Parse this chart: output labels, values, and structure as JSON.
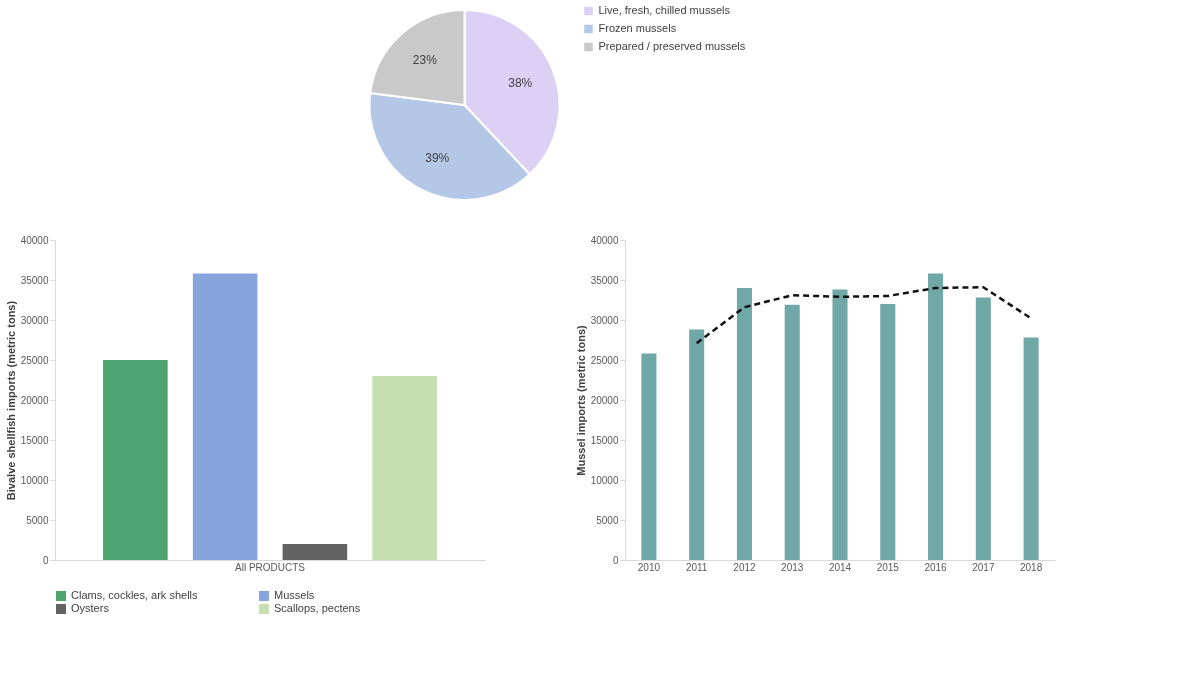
{
  "chart_data": [
    {
      "type": "pie",
      "categories": [
        "Live, fresh, chilled mussels",
        "Frozen mussels",
        "Prepared / preserved mussels"
      ],
      "values": [
        38,
        39,
        23
      ],
      "colors": [
        "#ddd0f5",
        "#b4c7e7",
        "#c9c9c9"
      ],
      "value_labels": [
        "38%",
        "39%",
        "23%"
      ],
      "legend": "right"
    },
    {
      "type": "bar",
      "ylabel": "Bivalve shellfish imports (metric tons)",
      "categories": [
        "All PRODUCTS"
      ],
      "series": [
        {
          "name": "Clams, cockles, ark shells",
          "color": "#4ea373",
          "values": [
            25000
          ]
        },
        {
          "name": "Mussels",
          "color": "#87a5dc",
          "values": [
            35800
          ]
        },
        {
          "name": "Oysters",
          "color": "#636363",
          "values": [
            2000
          ]
        },
        {
          "name": "Scallops, pectens",
          "color": "#c5dfb1",
          "values": [
            23000
          ]
        }
      ],
      "ylim": [
        0,
        40000
      ],
      "yticks": [
        0,
        5000,
        10000,
        15000,
        20000,
        25000,
        30000,
        35000,
        40000
      ],
      "legend": "bottom"
    },
    {
      "type": "bar",
      "ylabel": "Mussel imports (metric tons)",
      "categories": [
        "2010",
        "2011",
        "2012",
        "2013",
        "2014",
        "2015",
        "2016",
        "2017",
        "2018"
      ],
      "series": [
        {
          "type": "bar",
          "color": "#6fa8a6",
          "values": [
            25800,
            28800,
            34000,
            31900,
            33800,
            32000,
            35800,
            32800,
            27800
          ]
        },
        {
          "type": "line",
          "color": "#111111",
          "line_style": "dashed",
          "values": [
            null,
            27100,
            31600,
            33100,
            32900,
            33000,
            34000,
            34100,
            30200
          ]
        }
      ],
      "ylim": [
        0,
        40000
      ],
      "yticks": [
        0,
        5000,
        10000,
        15000,
        20000,
        25000,
        30000,
        35000,
        40000
      ]
    }
  ]
}
